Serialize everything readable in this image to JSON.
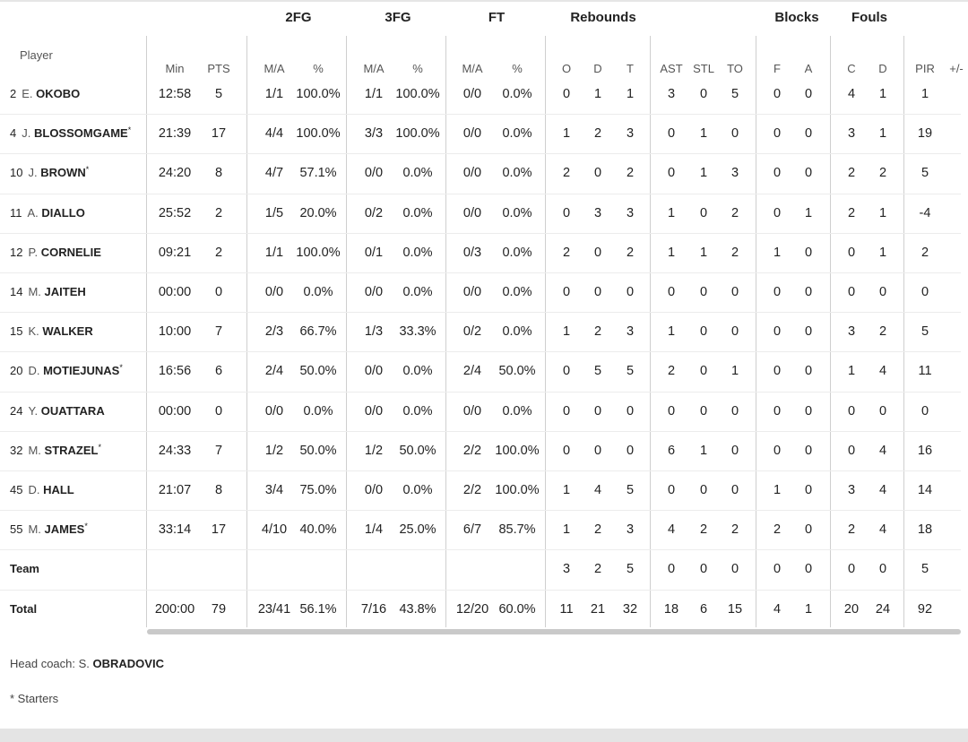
{
  "groups": [
    {
      "id": "2fg",
      "label": "2FG"
    },
    {
      "id": "3fg",
      "label": "3FG"
    },
    {
      "id": "ft",
      "label": "FT"
    },
    {
      "id": "rebounds",
      "label": "Rebounds"
    },
    {
      "id": "blocks",
      "label": "Blocks"
    },
    {
      "id": "fouls",
      "label": "Fouls"
    }
  ],
  "player_header": "Player",
  "columns": [
    "Min",
    "PTS",
    "M/A",
    "%",
    "M/A",
    "%",
    "M/A",
    "%",
    "O",
    "D",
    "T",
    "AST",
    "STL",
    "TO",
    "F",
    "A",
    "C",
    "D",
    "PIR",
    "+/-"
  ],
  "players": [
    {
      "num": "2",
      "init": "E.",
      "last": "OKOBO",
      "starter": false,
      "stats": [
        "12:58",
        "5",
        "1/1",
        "100.0%",
        "1/1",
        "100.0%",
        "0/0",
        "0.0%",
        "0",
        "1",
        "1",
        "3",
        "0",
        "5",
        "0",
        "0",
        "4",
        "1",
        "1",
        ""
      ]
    },
    {
      "num": "4",
      "init": "J.",
      "last": "BLOSSOMGAME",
      "starter": true,
      "stats": [
        "21:39",
        "17",
        "4/4",
        "100.0%",
        "3/3",
        "100.0%",
        "0/0",
        "0.0%",
        "1",
        "2",
        "3",
        "0",
        "1",
        "0",
        "0",
        "0",
        "3",
        "1",
        "19",
        ""
      ]
    },
    {
      "num": "10",
      "init": "J.",
      "last": "BROWN",
      "starter": true,
      "stats": [
        "24:20",
        "8",
        "4/7",
        "57.1%",
        "0/0",
        "0.0%",
        "0/0",
        "0.0%",
        "2",
        "0",
        "2",
        "0",
        "1",
        "3",
        "0",
        "0",
        "2",
        "2",
        "5",
        ""
      ]
    },
    {
      "num": "11",
      "init": "A.",
      "last": "DIALLO",
      "starter": false,
      "stats": [
        "25:52",
        "2",
        "1/5",
        "20.0%",
        "0/2",
        "0.0%",
        "0/0",
        "0.0%",
        "0",
        "3",
        "3",
        "1",
        "0",
        "2",
        "0",
        "1",
        "2",
        "1",
        "-4",
        ""
      ]
    },
    {
      "num": "12",
      "init": "P.",
      "last": "CORNELIE",
      "starter": false,
      "stats": [
        "09:21",
        "2",
        "1/1",
        "100.0%",
        "0/1",
        "0.0%",
        "0/3",
        "0.0%",
        "2",
        "0",
        "2",
        "1",
        "1",
        "2",
        "1",
        "0",
        "0",
        "1",
        "2",
        ""
      ]
    },
    {
      "num": "14",
      "init": "M.",
      "last": "JAITEH",
      "starter": false,
      "stats": [
        "00:00",
        "0",
        "0/0",
        "0.0%",
        "0/0",
        "0.0%",
        "0/0",
        "0.0%",
        "0",
        "0",
        "0",
        "0",
        "0",
        "0",
        "0",
        "0",
        "0",
        "0",
        "0",
        ""
      ]
    },
    {
      "num": "15",
      "init": "K.",
      "last": "WALKER",
      "starter": false,
      "stats": [
        "10:00",
        "7",
        "2/3",
        "66.7%",
        "1/3",
        "33.3%",
        "0/2",
        "0.0%",
        "1",
        "2",
        "3",
        "1",
        "0",
        "0",
        "0",
        "0",
        "3",
        "2",
        "5",
        ""
      ]
    },
    {
      "num": "20",
      "init": "D.",
      "last": "MOTIEJUNAS",
      "starter": true,
      "stats": [
        "16:56",
        "6",
        "2/4",
        "50.0%",
        "0/0",
        "0.0%",
        "2/4",
        "50.0%",
        "0",
        "5",
        "5",
        "2",
        "0",
        "1",
        "0",
        "0",
        "1",
        "4",
        "11",
        ""
      ]
    },
    {
      "num": "24",
      "init": "Y.",
      "last": "OUATTARA",
      "starter": false,
      "stats": [
        "00:00",
        "0",
        "0/0",
        "0.0%",
        "0/0",
        "0.0%",
        "0/0",
        "0.0%",
        "0",
        "0",
        "0",
        "0",
        "0",
        "0",
        "0",
        "0",
        "0",
        "0",
        "0",
        ""
      ]
    },
    {
      "num": "32",
      "init": "M.",
      "last": "STRAZEL",
      "starter": true,
      "stats": [
        "24:33",
        "7",
        "1/2",
        "50.0%",
        "1/2",
        "50.0%",
        "2/2",
        "100.0%",
        "0",
        "0",
        "0",
        "6",
        "1",
        "0",
        "0",
        "0",
        "0",
        "4",
        "16",
        ""
      ]
    },
    {
      "num": "45",
      "init": "D.",
      "last": "HALL",
      "starter": false,
      "stats": [
        "21:07",
        "8",
        "3/4",
        "75.0%",
        "0/0",
        "0.0%",
        "2/2",
        "100.0%",
        "1",
        "4",
        "5",
        "0",
        "0",
        "0",
        "1",
        "0",
        "3",
        "4",
        "14",
        ""
      ]
    },
    {
      "num": "55",
      "init": "M.",
      "last": "JAMES",
      "starter": true,
      "stats": [
        "33:14",
        "17",
        "4/10",
        "40.0%",
        "1/4",
        "25.0%",
        "6/7",
        "85.7%",
        "1",
        "2",
        "3",
        "4",
        "2",
        "2",
        "2",
        "0",
        "2",
        "4",
        "18",
        ""
      ]
    }
  ],
  "team_row": {
    "label": "Team",
    "stats": [
      "",
      "",
      "",
      "",
      "",
      "",
      "",
      "",
      "3",
      "2",
      "5",
      "0",
      "0",
      "0",
      "0",
      "0",
      "0",
      "0",
      "5",
      ""
    ]
  },
  "total_row": {
    "label": "Total",
    "stats": [
      "200:00",
      "79",
      "23/41",
      "56.1%",
      "7/16",
      "43.8%",
      "12/20",
      "60.0%",
      "11",
      "21",
      "32",
      "18",
      "6",
      "15",
      "4",
      "1",
      "20",
      "24",
      "92",
      ""
    ]
  },
  "coach": {
    "prefix": "Head coach: S.",
    "name": "OBRADOVIC"
  },
  "starters_note": "* Starters",
  "star_mark": "*"
}
